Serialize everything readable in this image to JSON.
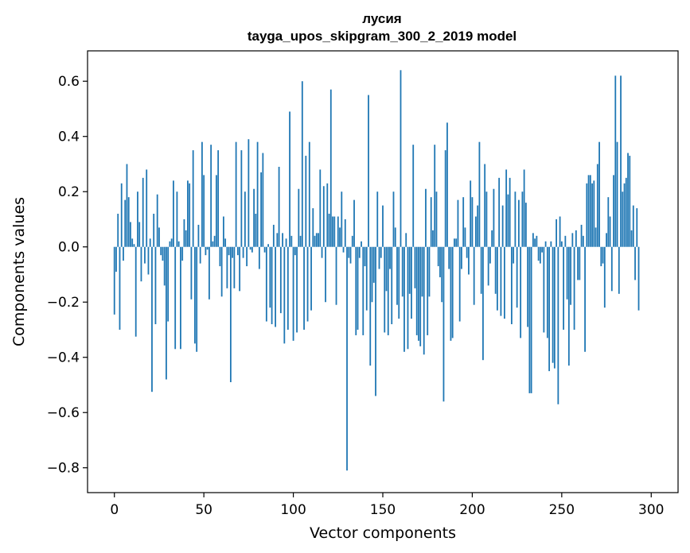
{
  "chart_data": {
    "type": "bar",
    "title_line1": "лусия",
    "title_line2": "tayga_upos_skipgram_300_2_2019 model",
    "xlabel": "Vector components",
    "ylabel": "Components values",
    "xlim": [
      -15,
      315
    ],
    "ylim": [
      -0.89,
      0.71
    ],
    "x_ticks": [
      0,
      50,
      100,
      150,
      200,
      250,
      300
    ],
    "x_tick_labels": [
      "0",
      "50",
      "100",
      "150",
      "200",
      "250",
      "300"
    ],
    "y_ticks": [
      0.6,
      0.4,
      0.2,
      0.0,
      -0.2,
      -0.4,
      -0.6,
      -0.8
    ],
    "y_tick_labels": [
      "0.6",
      "0.4",
      "0.2",
      "0.0",
      "−0.2",
      "−0.4",
      "−0.6",
      "−0.8"
    ],
    "bar_color": "#1f77b4",
    "values": [
      -0.245,
      -0.09,
      0.12,
      -0.3,
      0.23,
      -0.05,
      0.17,
      0.3,
      0.18,
      0.09,
      0.03,
      0.01,
      -0.325,
      0.2,
      0.09,
      -0.125,
      0.25,
      -0.06,
      0.28,
      -0.1,
      0.03,
      -0.525,
      0.12,
      -0.28,
      0.19,
      0.07,
      -0.03,
      -0.05,
      -0.14,
      -0.48,
      -0.27,
      0.02,
      0.03,
      0.24,
      -0.37,
      0.2,
      0.02,
      -0.37,
      -0.05,
      0.1,
      0.06,
      0.24,
      0.23,
      -0.19,
      0.35,
      -0.35,
      -0.38,
      0.08,
      -0.06,
      0.38,
      0.26,
      -0.03,
      -0.01,
      -0.19,
      0.37,
      0.02,
      0.04,
      0.26,
      0.35,
      -0.07,
      -0.18,
      0.11,
      0.03,
      -0.15,
      -0.03,
      -0.49,
      -0.04,
      -0.15,
      0.38,
      -0.03,
      -0.16,
      0.35,
      -0.04,
      0.2,
      -0.07,
      0.39,
      -0.01,
      -0.02,
      0.21,
      0.12,
      0.38,
      -0.08,
      0.27,
      0.34,
      -0.02,
      -0.27,
      0.01,
      -0.22,
      -0.28,
      0.08,
      -0.29,
      0.05,
      0.29,
      -0.24,
      0.05,
      -0.35,
      0.03,
      -0.3,
      0.49,
      0.04,
      -0.34,
      -0.03,
      -0.31,
      0.21,
      0.04,
      0.6,
      -0.3,
      0.33,
      -0.27,
      0.38,
      -0.23,
      0.14,
      0.04,
      0.05,
      0.05,
      0.28,
      -0.04,
      0.22,
      -0.2,
      0.23,
      0.12,
      0.57,
      0.11,
      0.11,
      -0.21,
      0.11,
      0.07,
      0.2,
      -0.02,
      0.1,
      -0.81,
      -0.04,
      -0.06,
      0.04,
      0.17,
      -0.32,
      -0.3,
      -0.04,
      0.02,
      -0.32,
      -0.07,
      -0.23,
      0.55,
      -0.43,
      -0.2,
      -0.13,
      -0.54,
      0.2,
      -0.08,
      -0.04,
      0.15,
      -0.31,
      -0.16,
      -0.32,
      -0.08,
      -0.28,
      0.2,
      0.07,
      -0.21,
      -0.26,
      0.64,
      -0.18,
      -0.38,
      0.05,
      -0.37,
      -0.17,
      -0.26,
      0.37,
      -0.15,
      -0.32,
      -0.34,
      -0.36,
      -0.18,
      -0.39,
      0.21,
      -0.32,
      -0.18,
      0.18,
      0.06,
      0.37,
      0.2,
      -0.07,
      -0.11,
      -0.2,
      -0.56,
      0.35,
      0.45,
      -0.08,
      -0.34,
      -0.33,
      0.03,
      0.03,
      0.17,
      -0.27,
      -0.08,
      0.18,
      0.07,
      -0.04,
      -0.1,
      0.24,
      0.18,
      -0.21,
      0.11,
      0.15,
      0.38,
      -0.17,
      -0.41,
      0.3,
      0.2,
      -0.14,
      -0.06,
      0.06,
      0.21,
      -0.17,
      -0.23,
      0.25,
      -0.25,
      0.15,
      -0.26,
      0.28,
      0.19,
      0.25,
      -0.28,
      -0.06,
      0.2,
      -0.22,
      0.17,
      -0.33,
      0.2,
      0.28,
      0.16,
      -0.29,
      -0.53,
      -0.53,
      0.05,
      0.03,
      0.04,
      -0.05,
      -0.06,
      -0.02,
      -0.31,
      0.02,
      -0.33,
      -0.45,
      0.02,
      -0.42,
      -0.44,
      0.1,
      -0.57,
      0.11,
      0.02,
      -0.3,
      0.04,
      -0.19,
      -0.43,
      -0.21,
      0.05,
      -0.3,
      0.06,
      -0.12,
      -0.12,
      0.08,
      0.04,
      -0.38,
      0.23,
      0.26,
      0.26,
      0.23,
      0.24,
      0.07,
      0.3,
      0.38,
      -0.07,
      -0.06,
      -0.22,
      0.05,
      0.18,
      0.11,
      -0.16,
      0.26,
      0.62,
      0.38,
      -0.17,
      0.62,
      0.2,
      0.23,
      0.25,
      0.34,
      0.33,
      0.06,
      0.15,
      -0.12,
      0.14,
      -0.23
    ]
  }
}
